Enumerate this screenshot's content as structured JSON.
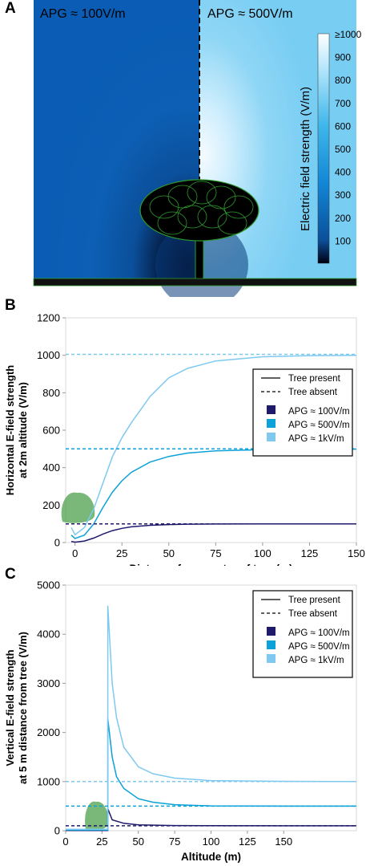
{
  "panels": {
    "a": {
      "letter": "A"
    },
    "b": {
      "letter": "B"
    },
    "c": {
      "letter": "C"
    }
  },
  "colors": {
    "apg100": "#1f1a6b",
    "apg500": "#0aa2d8",
    "apg1k": "#7fc9f0",
    "tree": "#4ca04c"
  },
  "chart_data": [
    {
      "type": "heatmap",
      "panel": "A",
      "left_label": "APG ≈ 100V/m",
      "right_label": "APG ≈ 500V/m",
      "colorbar": {
        "label": "Electric field strength  (V/m)",
        "ticks": [
          "≥1000",
          "900",
          "800",
          "700",
          "600",
          "500",
          "400",
          "300",
          "200",
          "100"
        ],
        "range": [
          0,
          1000
        ]
      }
    },
    {
      "type": "line",
      "panel": "B",
      "xlabel": "Distance from centre of tree (m)",
      "ylabel": "Horizontal E-field strength at 2m altitude  (V/m)",
      "ylabel_lines": [
        "Horizontal E-field strength",
        "at 2m altitude  (V/m)"
      ],
      "xlim": [
        -5,
        150
      ],
      "ylim": [
        0,
        1200
      ],
      "xticks": [
        "0",
        "25",
        "50",
        "75",
        "100",
        "125",
        "150"
      ],
      "yticks": [
        "0",
        "200",
        "400",
        "600",
        "800",
        "1000",
        "1200"
      ],
      "legend": {
        "position": "right",
        "style_entries": [
          "Tree present",
          "Tree absent"
        ],
        "series_entries": [
          "APG ≈ 100V/m",
          "APG ≈ 500V/m",
          "APG ≈ 1kV/m"
        ]
      },
      "series": [
        {
          "name": "APG ≈ 100V/m",
          "style": "tree present",
          "x": [
            -2,
            0,
            5,
            10,
            15,
            20,
            25,
            30,
            40,
            50,
            60,
            75,
            100,
            125,
            150
          ],
          "y": [
            6,
            2,
            8,
            24,
            46,
            64,
            76,
            84,
            92,
            96,
            98,
            99,
            100,
            100,
            100
          ]
        },
        {
          "name": "APG ≈ 500V/m",
          "style": "tree present",
          "x": [
            -2,
            0,
            5,
            10,
            15,
            20,
            25,
            30,
            40,
            50,
            60,
            75,
            100,
            125,
            150
          ],
          "y": [
            40,
            22,
            40,
            100,
            190,
            270,
            330,
            375,
            430,
            460,
            478,
            490,
            496,
            498,
            499
          ]
        },
        {
          "name": "APG ≈ 1kV/m",
          "style": "tree present",
          "x": [
            -2,
            0,
            5,
            10,
            15,
            20,
            25,
            30,
            40,
            50,
            60,
            75,
            100,
            125,
            150
          ],
          "y": [
            80,
            42,
            80,
            180,
            320,
            460,
            560,
            640,
            780,
            880,
            930,
            970,
            992,
            998,
            1000
          ]
        },
        {
          "name": "APG ≈ 100V/m",
          "style": "tree absent",
          "x": [
            -5,
            150
          ],
          "y": [
            100,
            100
          ]
        },
        {
          "name": "APG ≈ 500V/m",
          "style": "tree absent",
          "x": [
            -5,
            150
          ],
          "y": [
            500,
            500
          ]
        },
        {
          "name": "APG ≈ 1kV/m",
          "style": "tree absent",
          "x": [
            -5,
            150
          ],
          "y": [
            1005,
            1005
          ]
        }
      ]
    },
    {
      "type": "line",
      "panel": "C",
      "xlabel": "Altitude (m)",
      "ylabel": "Vertical E-field strength at 5 m distance from tree (V/m)",
      "ylabel_lines": [
        "Vertical E-field strength",
        "at 5 m distance from tree (V/m)"
      ],
      "xlim": [
        0,
        200
      ],
      "ylim": [
        0,
        5000
      ],
      "xticks": [
        "0",
        "25",
        "50",
        "75",
        "100",
        "125",
        "150"
      ],
      "yticks": [
        "0",
        "1000",
        "2000",
        "3000",
        "4000",
        "5000"
      ],
      "legend": {
        "position": "right",
        "style_entries": [
          "Tree present",
          "Tree absent"
        ],
        "series_entries": [
          "APG ≈ 100V/m",
          "APG ≈ 500V/m",
          "APG ≈ 1kV/m"
        ]
      },
      "series": [
        {
          "name": "APG ≈ 100V/m",
          "style": "tree present",
          "x": [
            0,
            14,
            29,
            29,
            32,
            40,
            50,
            75,
            100,
            150,
            200
          ],
          "y": [
            5,
            5,
            5,
            450,
            220,
            150,
            120,
            105,
            102,
            100,
            100
          ]
        },
        {
          "name": "APG ≈ 500V/m",
          "style": "tree present",
          "x": [
            0,
            14,
            29,
            29,
            32,
            35,
            40,
            50,
            60,
            75,
            100,
            150,
            200
          ],
          "y": [
            15,
            15,
            15,
            2280,
            1500,
            1100,
            860,
            650,
            580,
            530,
            505,
            500,
            500
          ]
        },
        {
          "name": "APG ≈ 1kV/m",
          "style": "tree present",
          "x": [
            0,
            14,
            29,
            29,
            32,
            35,
            40,
            50,
            60,
            75,
            100,
            150,
            200
          ],
          "y": [
            30,
            30,
            30,
            4580,
            3000,
            2300,
            1700,
            1300,
            1160,
            1070,
            1020,
            1005,
            1000
          ]
        },
        {
          "name": "APG ≈ 100V/m",
          "style": "tree absent",
          "x": [
            0,
            200
          ],
          "y": [
            100,
            100
          ]
        },
        {
          "name": "APG ≈ 500V/m",
          "style": "tree absent",
          "x": [
            0,
            200
          ],
          "y": [
            500,
            500
          ]
        },
        {
          "name": "APG ≈ 1kV/m",
          "style": "tree absent",
          "x": [
            0,
            200
          ],
          "y": [
            1000,
            1000
          ]
        }
      ]
    }
  ]
}
